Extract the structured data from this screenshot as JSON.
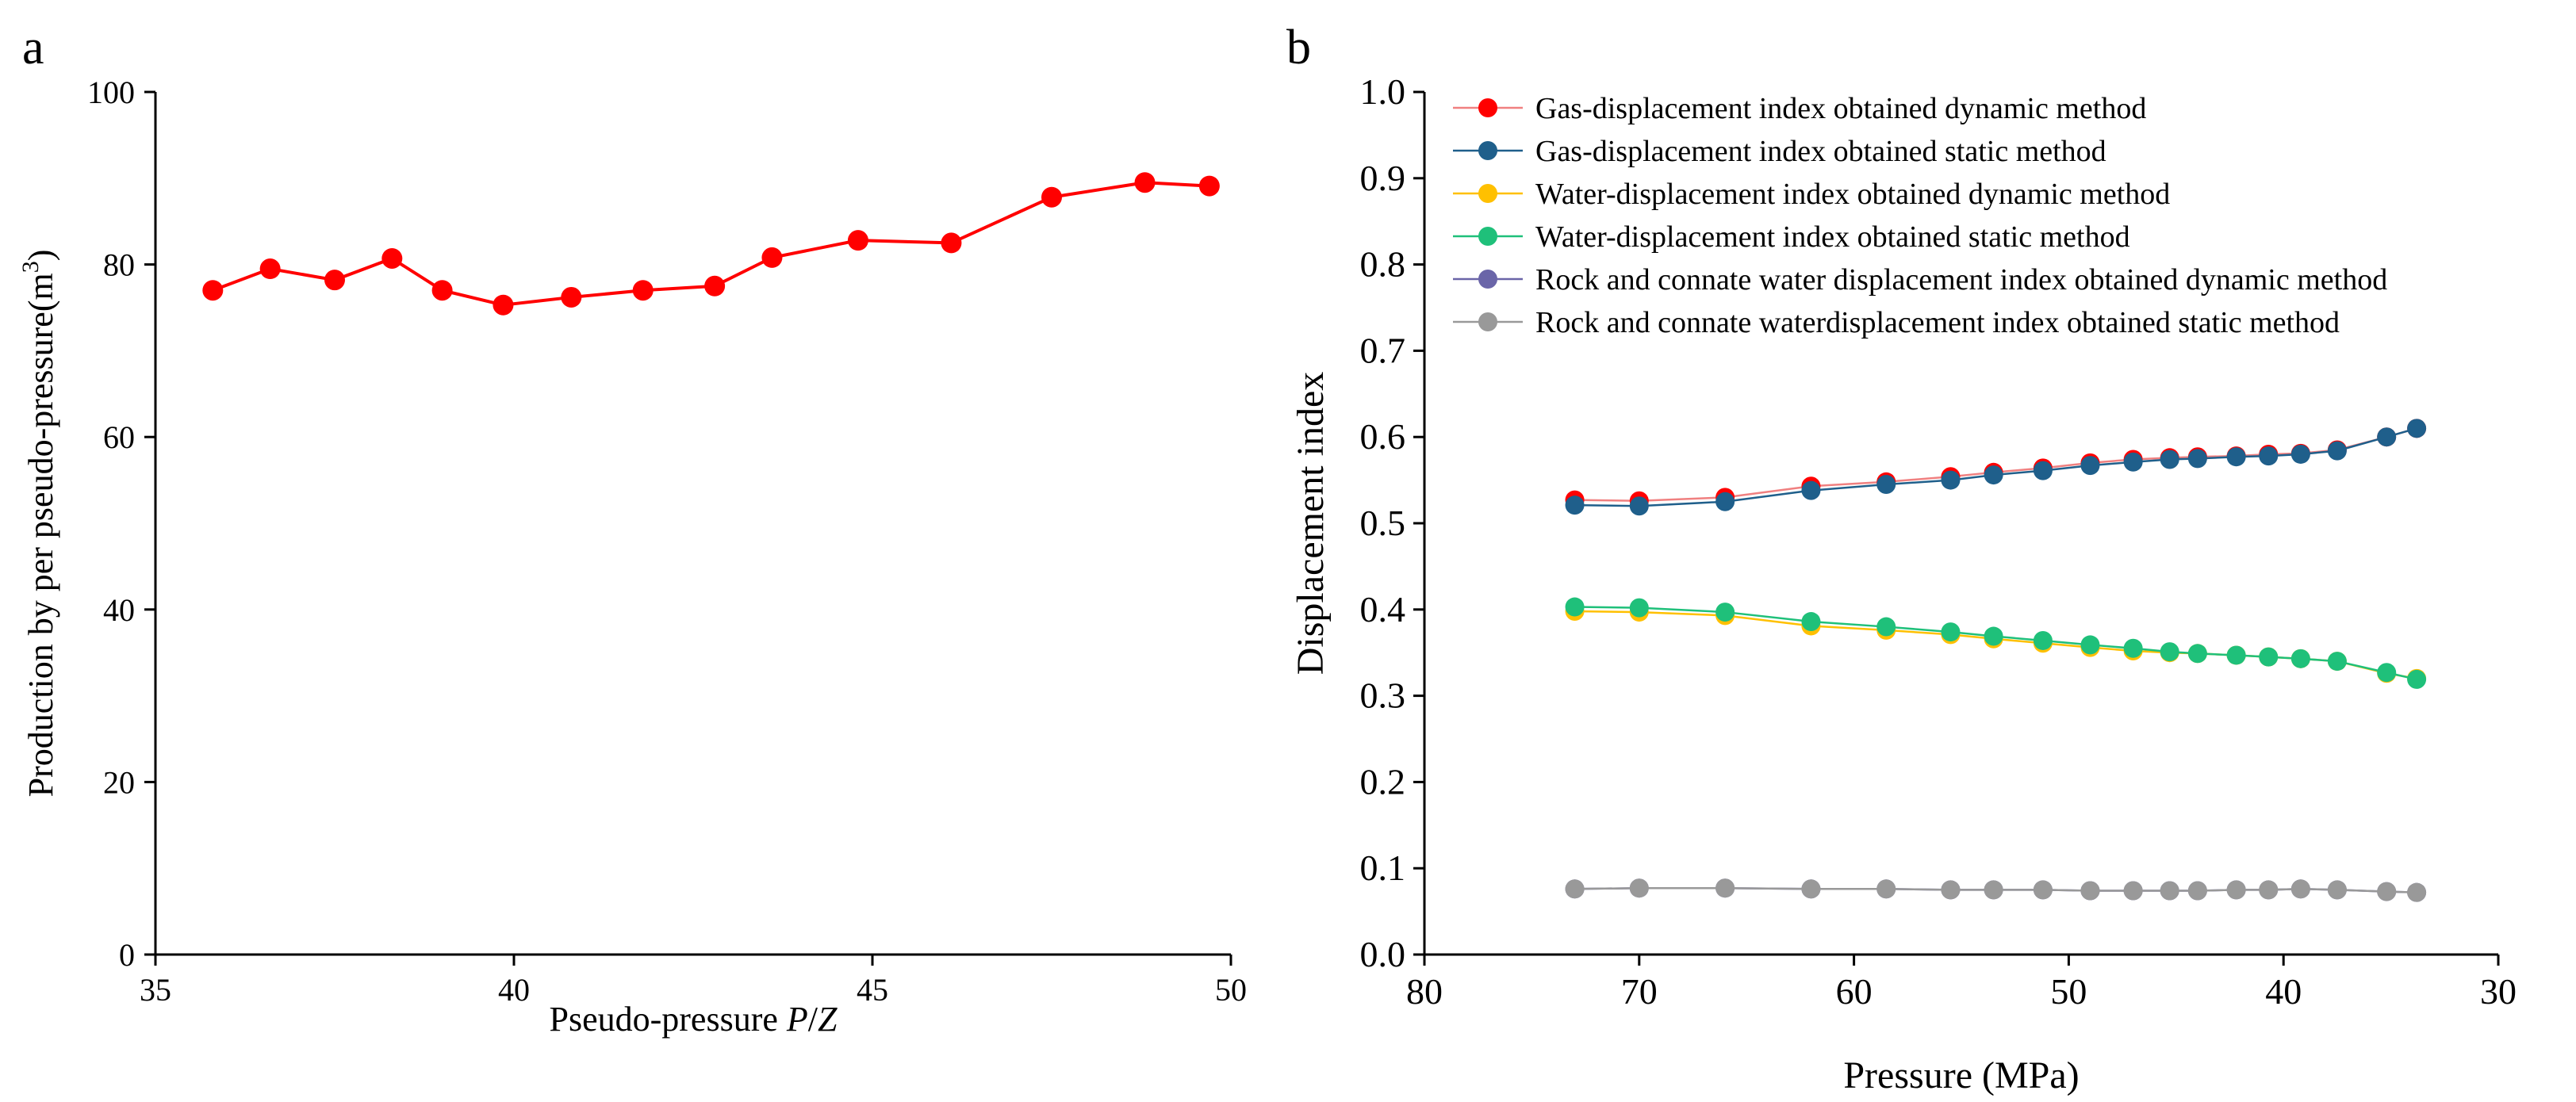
{
  "chart_data": [
    {
      "panel_label": "a",
      "type": "line",
      "xlabel_prefix": "Pseudo-pressure ",
      "xlabel_var": "P",
      "xlabel_sep": "/",
      "xlabel_var2": "Z",
      "ylabel_main": "Production by per pseudo-pressure(m",
      "ylabel_sup": "3",
      "ylabel_end": ")",
      "xlim": [
        35,
        50
      ],
      "ylim": [
        0,
        100
      ],
      "xticks": [
        35,
        40,
        45,
        50
      ],
      "yticks": [
        0,
        20,
        40,
        60,
        80,
        100
      ],
      "grid": false,
      "series": [
        {
          "color": "#ff0000",
          "x": [
            35.8,
            36.6,
            37.5,
            38.3,
            39.0,
            39.85,
            40.8,
            41.8,
            42.8,
            43.6,
            44.8,
            46.1,
            47.5,
            48.8,
            49.7
          ],
          "y": [
            77.0,
            79.5,
            78.2,
            80.7,
            77.0,
            75.3,
            76.2,
            77.0,
            77.5,
            80.8,
            82.8,
            82.5,
            87.8,
            89.5,
            89.1
          ]
        }
      ]
    },
    {
      "panel_label": "b",
      "type": "line",
      "xlabel": "Pressure (MPa)",
      "ylabel": "Displacement index",
      "xlim": [
        80,
        30
      ],
      "ylim": [
        0.0,
        1.0
      ],
      "xticks": [
        80,
        70,
        60,
        50,
        40,
        30
      ],
      "yticks": [
        "0.0",
        "0.1",
        "0.2",
        "0.3",
        "0.4",
        "0.5",
        "0.6",
        "0.7",
        "0.8",
        "0.9",
        "1.0"
      ],
      "legend_position": "top-left",
      "grid": false,
      "x": [
        73,
        70,
        66,
        62,
        58.5,
        55.5,
        53.5,
        51.2,
        49,
        47,
        45.3,
        44,
        42.2,
        40.7,
        39.2,
        37.5,
        35.2,
        33.8
      ],
      "series": [
        {
          "name": "Gas-displacement index obtained dynamic method",
          "color": "#ff0000",
          "line_color": "#f08080",
          "values": [
            0.527,
            0.526,
            0.53,
            0.543,
            0.548,
            0.554,
            0.559,
            0.564,
            0.57,
            0.574,
            0.576,
            0.577,
            0.578,
            0.58,
            0.581,
            0.585,
            0.6,
            0.61
          ]
        },
        {
          "name": "Gas-displacement index obtained static method",
          "color": "#1f5f8b",
          "line_color": "#1f5f8b",
          "values": [
            0.521,
            0.52,
            0.525,
            0.538,
            0.545,
            0.55,
            0.556,
            0.561,
            0.567,
            0.571,
            0.574,
            0.575,
            0.577,
            0.578,
            0.58,
            0.584,
            0.6,
            0.61
          ]
        },
        {
          "name": "Water-displacement index obtained dynamic method",
          "color": "#ffc000",
          "line_color": "#ffc000",
          "values": [
            0.398,
            0.397,
            0.393,
            0.381,
            0.376,
            0.371,
            0.366,
            0.361,
            0.356,
            0.352,
            0.35,
            0.349,
            0.347,
            0.345,
            0.343,
            0.34,
            0.326,
            0.32
          ]
        },
        {
          "name": "Water-displacement index obtained static method",
          "color": "#1fc07a",
          "line_color": "#1fc07a",
          "values": [
            0.403,
            0.402,
            0.397,
            0.386,
            0.38,
            0.374,
            0.369,
            0.364,
            0.359,
            0.355,
            0.351,
            0.349,
            0.347,
            0.345,
            0.343,
            0.34,
            0.327,
            0.319
          ]
        },
        {
          "name": "Rock and connate water displacement index obtained dynamic method",
          "color": "#6a65a8",
          "line_color": "#6a65a8",
          "values": [
            0.076,
            0.077,
            0.077,
            0.076,
            0.076,
            0.075,
            0.075,
            0.075,
            0.074,
            0.074,
            0.074,
            0.074,
            0.075,
            0.075,
            0.076,
            0.075,
            0.073,
            0.072
          ]
        },
        {
          "name": "Rock and connate waterdisplacement index obtained static method",
          "color": "#999999",
          "line_color": "#999999",
          "values": [
            0.076,
            0.077,
            0.077,
            0.076,
            0.076,
            0.075,
            0.075,
            0.075,
            0.074,
            0.074,
            0.074,
            0.074,
            0.075,
            0.075,
            0.076,
            0.075,
            0.073,
            0.072
          ]
        }
      ]
    }
  ]
}
